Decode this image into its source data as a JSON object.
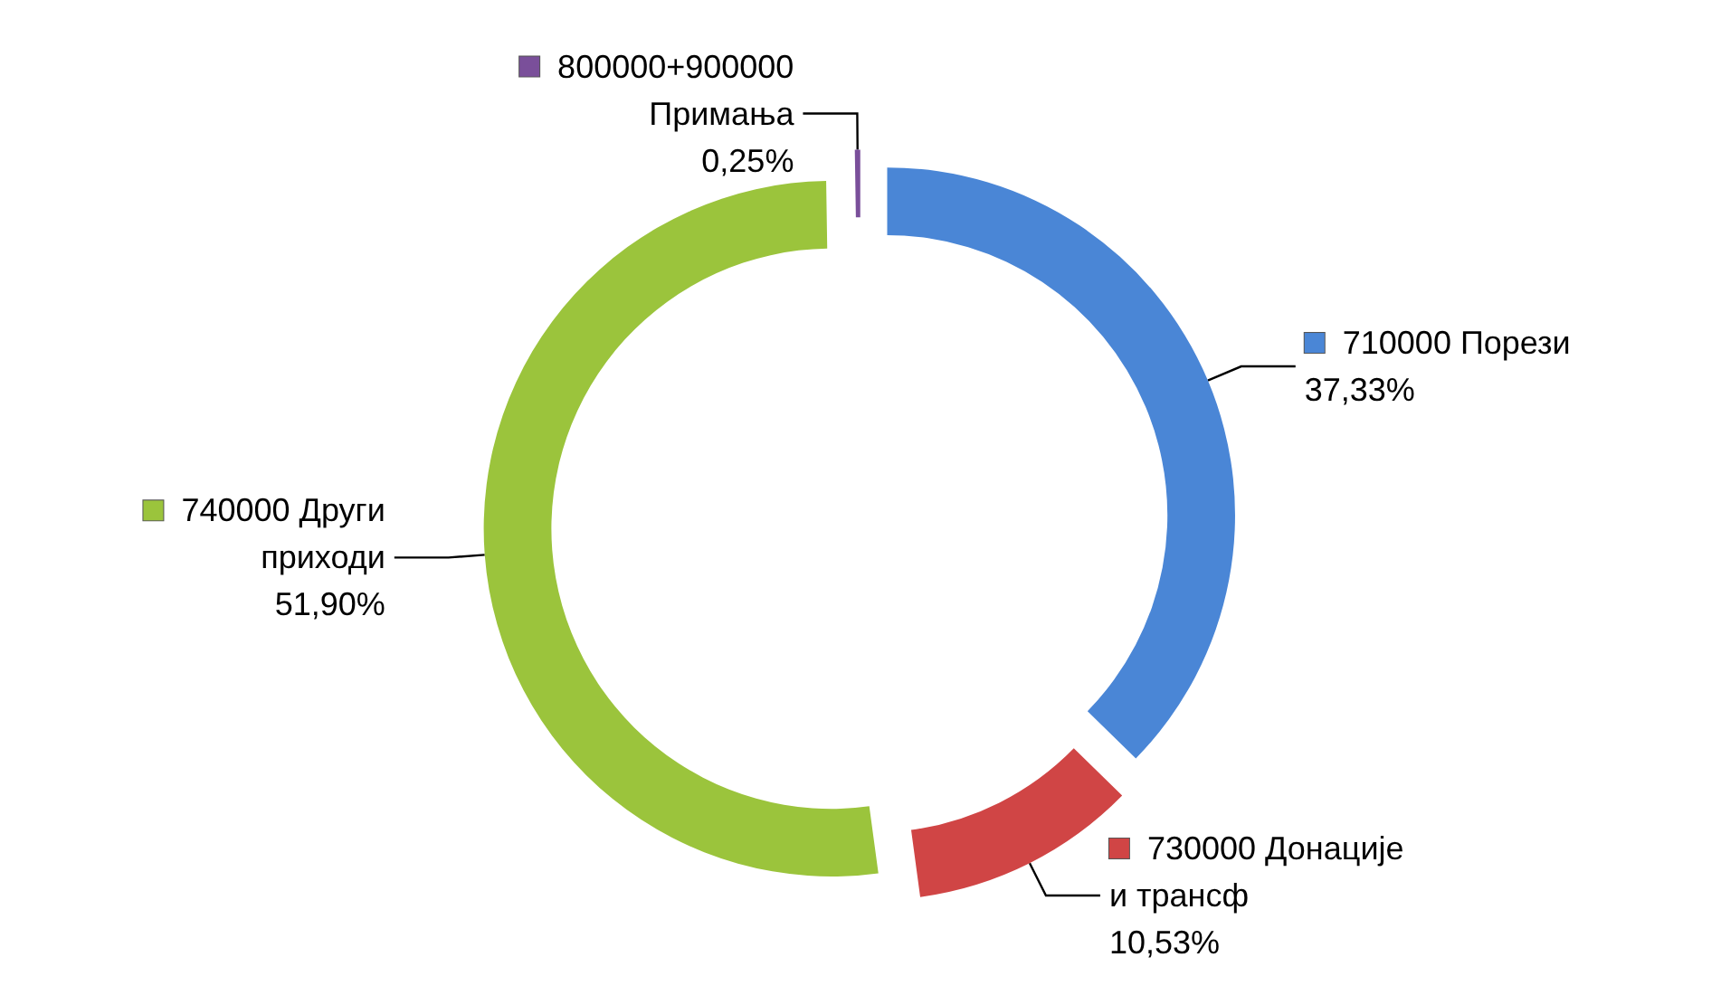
{
  "chart_data": {
    "type": "donut",
    "categories": [
      "710000 Порези",
      "730000 Донације и трансф",
      "740000 Други приходи",
      "800000+900000 Примања"
    ],
    "values": [
      37.33,
      10.53,
      51.9,
      0.25
    ],
    "colors": [
      "#4a86d6",
      "#d04545",
      "#9bc43c",
      "#7a4f9a"
    ],
    "value_labels": [
      "37,33%",
      "10,53%",
      "51,90%",
      "0,25%"
    ],
    "legend": "right"
  }
}
